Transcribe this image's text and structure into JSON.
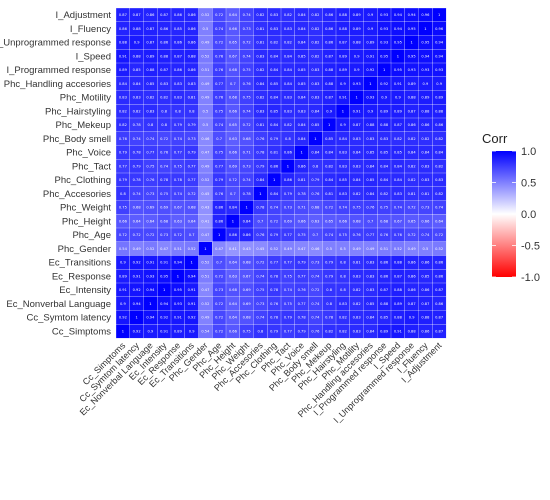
{
  "chart_data": {
    "type": "heatmap",
    "title": "",
    "legend_title": "Corr",
    "legend_ticks": [
      "1.0",
      "0.5",
      "0.0",
      "-0.5",
      "-1.0"
    ],
    "legend_values": [
      1.0,
      0.5,
      0.0,
      -0.5,
      -1.0
    ],
    "color_scale": {
      "low": "#ff0000",
      "mid": "#ffffff",
      "high": "#0000ff",
      "limits": [
        -1,
        1
      ]
    },
    "variables": [
      "Cc_Simptoms",
      "Cc_Symtom latency",
      "Ec_Nonverbal Language",
      "Ec_Intensity",
      "Ec_Response",
      "Ec_Transitions",
      "Phc_Gender",
      "Phc_Age",
      "Phc_Height",
      "Phc_Weight",
      "Phc_Accesories",
      "Phc_Clothing",
      "Phc_Tact",
      "Phc_Voice",
      "Phc_Body smell",
      "Phc_Mekeup",
      "Phc_Hairstyling",
      "Phc_Motility",
      "Phc_Handling accesories",
      "I_Programmed response",
      "I_Speed",
      "I_Unprogrammed response",
      "I_Fluency",
      "I_Adjustment"
    ],
    "matrix": [
      [
        1,
        0.92,
        0.9,
        0.91,
        0.89,
        0.9,
        0.54,
        0.72,
        0.66,
        0.75,
        0.8,
        0.79,
        0.77,
        0.79,
        0.76,
        0.82,
        0.82,
        0.83,
        0.84,
        0.89,
        0.91,
        0.88,
        0.86,
        0.87
      ],
      [
        0.92,
        1,
        0.94,
        0.92,
        0.91,
        0.92,
        0.49,
        0.72,
        0.64,
        0.68,
        0.74,
        0.78,
        0.79,
        0.78,
        0.74,
        0.78,
        0.82,
        0.83,
        0.84,
        0.85,
        0.88,
        0.9,
        0.88,
        0.87
      ],
      [
        0.9,
        0.94,
        1,
        0.94,
        0.93,
        0.91,
        0.52,
        0.72,
        0.64,
        0.69,
        0.73,
        0.76,
        0.75,
        0.77,
        0.74,
        0.8,
        0.83,
        0.82,
        0.85,
        0.88,
        0.89,
        0.87,
        0.87,
        0.86
      ],
      [
        0.91,
        0.92,
        0.94,
        1,
        0.95,
        0.91,
        0.47,
        0.73,
        0.68,
        0.69,
        0.75,
        0.78,
        0.74,
        0.76,
        0.72,
        0.8,
        0.8,
        0.82,
        0.83,
        0.87,
        0.88,
        0.86,
        0.86,
        0.87
      ],
      [
        0.89,
        0.91,
        0.93,
        0.95,
        1,
        0.94,
        0.51,
        0.72,
        0.63,
        0.67,
        0.74,
        0.78,
        0.75,
        0.77,
        0.74,
        0.79,
        0.8,
        0.83,
        0.83,
        0.86,
        0.87,
        0.86,
        0.85,
        0.86
      ],
      [
        0.9,
        0.92,
        0.91,
        0.91,
        0.94,
        1,
        0.52,
        0.7,
        0.64,
        0.68,
        0.72,
        0.77,
        0.77,
        0.79,
        0.73,
        0.79,
        0.8,
        0.81,
        0.83,
        0.86,
        0.88,
        0.86,
        0.86,
        0.86
      ],
      [
        0.54,
        0.49,
        0.52,
        0.47,
        0.51,
        0.52,
        1,
        0.47,
        0.41,
        0.43,
        0.45,
        0.52,
        0.49,
        0.47,
        0.46,
        0.5,
        0.5,
        0.49,
        0.49,
        0.51,
        0.52,
        0.49,
        0.5,
        0.52
      ],
      [
        0.72,
        0.72,
        0.72,
        0.73,
        0.72,
        0.7,
        0.47,
        1,
        0.86,
        0.86,
        0.76,
        0.79,
        0.77,
        0.75,
        0.7,
        0.74,
        0.75,
        0.76,
        0.77,
        0.76,
        0.76,
        0.72,
        0.74,
        0.72
      ],
      [
        0.66,
        0.64,
        0.64,
        0.68,
        0.63,
        0.64,
        0.41,
        0.86,
        1,
        0.84,
        0.7,
        0.72,
        0.69,
        0.66,
        0.63,
        0.65,
        0.66,
        0.68,
        0.7,
        0.68,
        0.67,
        0.65,
        0.66,
        0.64
      ],
      [
        0.75,
        0.68,
        0.69,
        0.69,
        0.67,
        0.68,
        0.43,
        0.86,
        0.84,
        1,
        0.78,
        0.74,
        0.73,
        0.71,
        0.68,
        0.72,
        0.74,
        0.75,
        0.76,
        0.75,
        0.74,
        0.72,
        0.73,
        0.74
      ],
      [
        0.8,
        0.74,
        0.73,
        0.75,
        0.74,
        0.72,
        0.45,
        0.76,
        0.7,
        0.78,
        1,
        0.84,
        0.79,
        0.78,
        0.76,
        0.81,
        0.83,
        0.82,
        0.84,
        0.82,
        0.83,
        0.81,
        0.81,
        0.82
      ],
      [
        0.79,
        0.78,
        0.76,
        0.78,
        0.78,
        0.77,
        0.52,
        0.79,
        0.72,
        0.74,
        0.84,
        1,
        0.86,
        0.81,
        0.79,
        0.84,
        0.85,
        0.84,
        0.85,
        0.84,
        0.84,
        0.82,
        0.83,
        0.83
      ],
      [
        0.77,
        0.79,
        0.75,
        0.74,
        0.75,
        0.77,
        0.49,
        0.77,
        0.69,
        0.73,
        0.79,
        0.86,
        1,
        0.86,
        0.8,
        0.82,
        0.83,
        0.83,
        0.84,
        0.84,
        0.84,
        0.82,
        0.83,
        0.82
      ],
      [
        0.79,
        0.78,
        0.77,
        0.76,
        0.77,
        0.79,
        0.47,
        0.75,
        0.66,
        0.71,
        0.78,
        0.81,
        0.86,
        1,
        0.84,
        0.84,
        0.83,
        0.84,
        0.85,
        0.85,
        0.85,
        0.84,
        0.84,
        0.84
      ],
      [
        0.76,
        0.74,
        0.74,
        0.72,
        0.74,
        0.73,
        0.46,
        0.7,
        0.63,
        0.68,
        0.76,
        0.79,
        0.8,
        0.84,
        1,
        0.85,
        0.84,
        0.83,
        0.83,
        0.83,
        0.82,
        0.82,
        0.82,
        0.82
      ],
      [
        0.82,
        0.78,
        0.8,
        0.8,
        0.79,
        0.79,
        0.5,
        0.74,
        0.65,
        0.72,
        0.81,
        0.84,
        0.82,
        0.84,
        0.85,
        1,
        0.9,
        0.87,
        0.88,
        0.88,
        0.87,
        0.86,
        0.86,
        0.86
      ],
      [
        0.82,
        0.82,
        0.83,
        0.8,
        0.8,
        0.8,
        0.5,
        0.75,
        0.66,
        0.74,
        0.83,
        0.85,
        0.83,
        0.83,
        0.84,
        0.9,
        1,
        0.91,
        0.9,
        0.89,
        0.89,
        0.87,
        0.88,
        0.88
      ],
      [
        0.83,
        0.83,
        0.82,
        0.82,
        0.83,
        0.81,
        0.49,
        0.76,
        0.68,
        0.75,
        0.82,
        0.84,
        0.83,
        0.84,
        0.83,
        0.87,
        0.91,
        1,
        0.93,
        0.9,
        0.9,
        0.88,
        0.89,
        0.89
      ],
      [
        0.84,
        0.84,
        0.85,
        0.83,
        0.83,
        0.83,
        0.49,
        0.77,
        0.7,
        0.76,
        0.84,
        0.85,
        0.84,
        0.85,
        0.83,
        0.88,
        0.9,
        0.93,
        1,
        0.92,
        0.91,
        0.89,
        0.9,
        0.9
      ],
      [
        0.89,
        0.85,
        0.88,
        0.87,
        0.86,
        0.86,
        0.51,
        0.76,
        0.68,
        0.75,
        0.82,
        0.84,
        0.84,
        0.85,
        0.83,
        0.88,
        0.89,
        0.9,
        0.92,
        1,
        0.95,
        0.93,
        0.93,
        0.93
      ],
      [
        0.91,
        0.88,
        0.89,
        0.88,
        0.87,
        0.88,
        0.52,
        0.76,
        0.67,
        0.74,
        0.83,
        0.84,
        0.84,
        0.85,
        0.82,
        0.87,
        0.89,
        0.9,
        0.91,
        0.95,
        1,
        0.95,
        0.94,
        0.94
      ],
      [
        0.88,
        0.9,
        0.87,
        0.86,
        0.86,
        0.86,
        0.49,
        0.72,
        0.65,
        0.72,
        0.81,
        0.82,
        0.82,
        0.84,
        0.82,
        0.86,
        0.87,
        0.88,
        0.89,
        0.93,
        0.95,
        1,
        0.95,
        0.94
      ],
      [
        0.86,
        0.88,
        0.87,
        0.86,
        0.85,
        0.86,
        0.5,
        0.74,
        0.66,
        0.73,
        0.81,
        0.83,
        0.83,
        0.84,
        0.82,
        0.86,
        0.88,
        0.89,
        0.9,
        0.93,
        0.94,
        0.95,
        1,
        0.96
      ],
      [
        0.87,
        0.87,
        0.86,
        0.87,
        0.86,
        0.86,
        0.52,
        0.72,
        0.64,
        0.74,
        0.82,
        0.83,
        0.82,
        0.84,
        0.82,
        0.86,
        0.88,
        0.89,
        0.9,
        0.93,
        0.94,
        0.94,
        0.96,
        1
      ]
    ],
    "show_values": true,
    "legend_position": "right"
  }
}
